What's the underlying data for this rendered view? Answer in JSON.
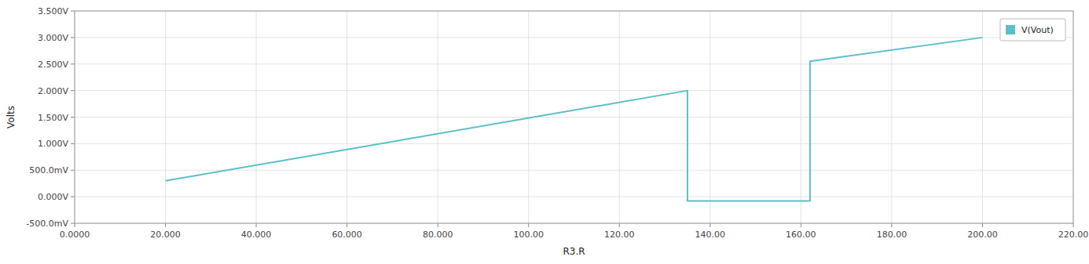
{
  "chart_data": {
    "type": "line",
    "xlabel": "R3.R",
    "ylabel": "Volts",
    "x": [
      20,
      135,
      135,
      162,
      162,
      200
    ],
    "series": [
      {
        "name": "V(Vout)",
        "color": "#5bbfc8",
        "values": [
          0.3,
          2.0,
          -0.08,
          -0.08,
          2.55,
          3.0
        ]
      }
    ],
    "xlim": [
      0,
      220
    ],
    "ylim": [
      -0.5,
      3.5
    ],
    "xticks": [
      {
        "value": 0,
        "label": "0.0000"
      },
      {
        "value": 20,
        "label": "20.000"
      },
      {
        "value": 40,
        "label": "40.000"
      },
      {
        "value": 60,
        "label": "60.000"
      },
      {
        "value": 80,
        "label": "80.000"
      },
      {
        "value": 100,
        "label": "100.00"
      },
      {
        "value": 120,
        "label": "120.00"
      },
      {
        "value": 140,
        "label": "140.00"
      },
      {
        "value": 160,
        "label": "160.00"
      },
      {
        "value": 180,
        "label": "180.00"
      },
      {
        "value": 200,
        "label": "200.00"
      },
      {
        "value": 220,
        "label": "220.00"
      }
    ],
    "yticks": [
      {
        "value": -0.5,
        "label": "-500.0mV"
      },
      {
        "value": 0.0,
        "label": "0.000V"
      },
      {
        "value": 0.5,
        "label": "500.0mV"
      },
      {
        "value": 1.0,
        "label": "1.000V"
      },
      {
        "value": 1.5,
        "label": "1.500V"
      },
      {
        "value": 2.0,
        "label": "2.000V"
      },
      {
        "value": 2.5,
        "label": "2.500V"
      },
      {
        "value": 3.0,
        "label": "3.000V"
      },
      {
        "value": 3.5,
        "label": "3.500V"
      }
    ],
    "grid": true,
    "legend": "upper right"
  }
}
